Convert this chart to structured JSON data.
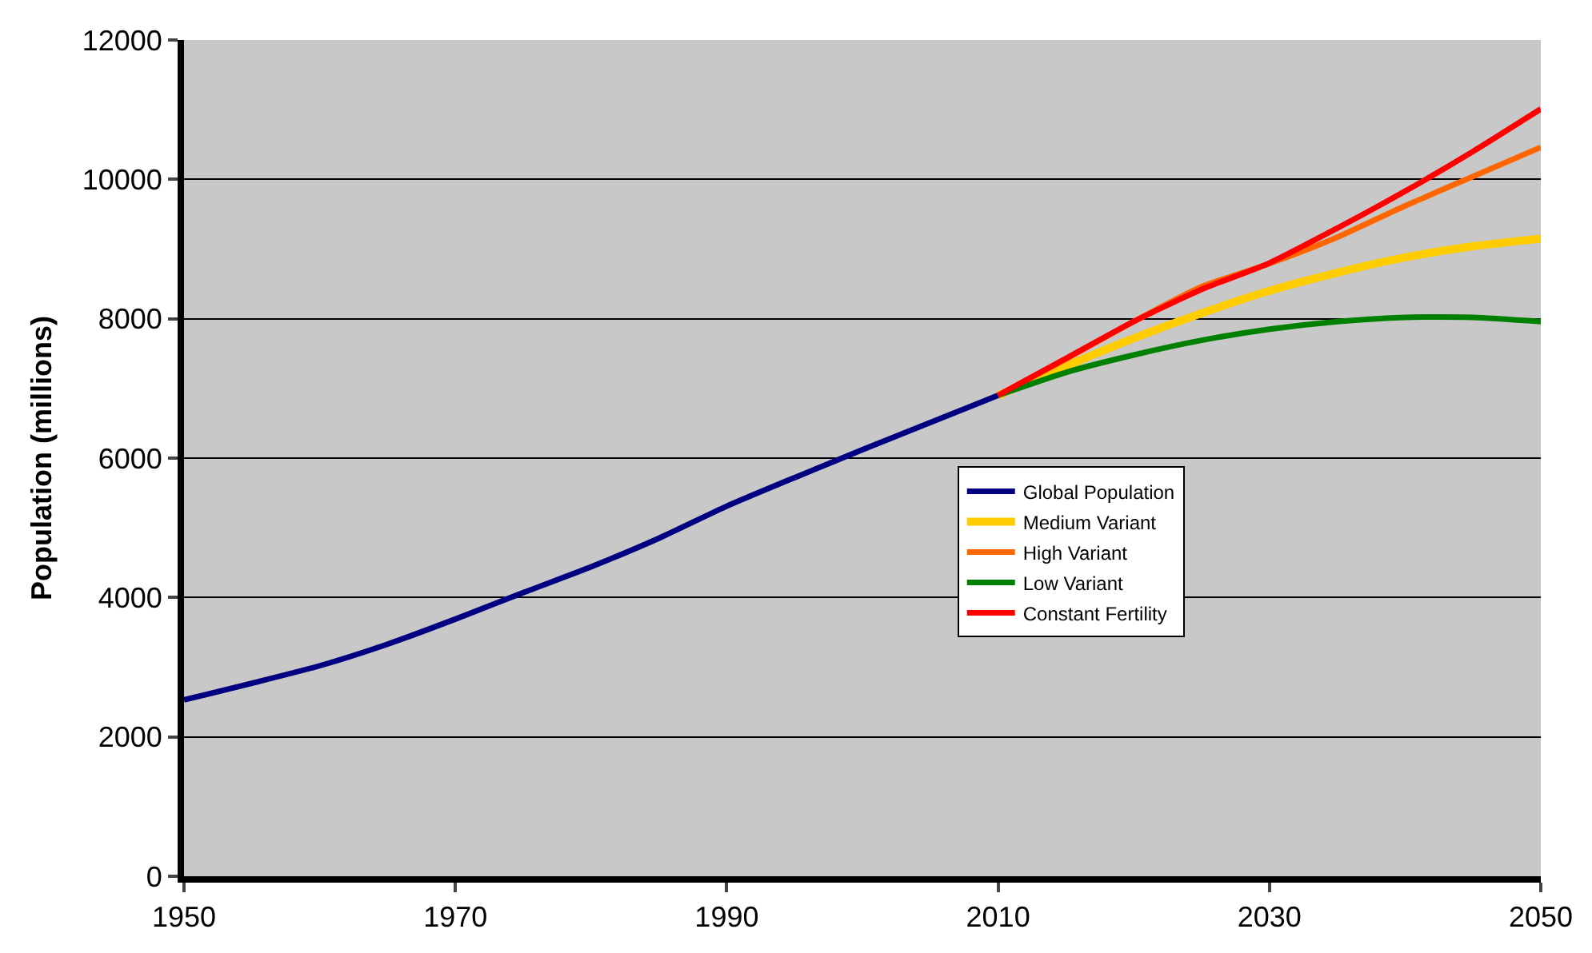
{
  "chart_data": {
    "type": "line",
    "ylabel": "Population (millions)",
    "xlim": [
      1950,
      2050
    ],
    "xticks": [
      1950,
      1970,
      1990,
      2010,
      2030,
      2050
    ],
    "ylim": [
      0,
      12000
    ],
    "yticks": [
      0,
      2000,
      4000,
      6000,
      8000,
      10000,
      12000
    ],
    "grid": "y",
    "legend": "center right",
    "marker": "none",
    "line_style": "solid",
    "series": [
      {
        "name": "Global Population",
        "color": "#000080",
        "x": [
          1950,
          1955,
          1960,
          1965,
          1970,
          1975,
          1980,
          1985,
          1990,
          1995,
          2000,
          2005,
          2010
        ],
        "values": [
          2530,
          2770,
          3020,
          3330,
          3690,
          4070,
          4440,
          4850,
          5310,
          5720,
          6120,
          6510,
          6900
        ]
      },
      {
        "name": "Medium Variant",
        "color": "#ffcc00",
        "x": [
          2010,
          2015,
          2020,
          2025,
          2030,
          2035,
          2040,
          2045,
          2050
        ],
        "values": [
          6900,
          7320,
          7720,
          8080,
          8400,
          8660,
          8880,
          9040,
          9150
        ]
      },
      {
        "name": "High Variant",
        "color": "#ff6600",
        "x": [
          2010,
          2015,
          2020,
          2025,
          2030,
          2035,
          2040,
          2045,
          2050
        ],
        "values": [
          6900,
          7420,
          7960,
          8460,
          8790,
          9170,
          9620,
          10040,
          10460
        ]
      },
      {
        "name": "Low Variant",
        "color": "#008000",
        "x": [
          2010,
          2015,
          2020,
          2025,
          2030,
          2035,
          2040,
          2045,
          2050
        ],
        "values": [
          6900,
          7230,
          7480,
          7690,
          7850,
          7960,
          8020,
          8020,
          7960
        ]
      },
      {
        "name": "Constant Fertility",
        "color": "#ff0000",
        "x": [
          2010,
          2015,
          2020,
          2025,
          2030,
          2035,
          2040,
          2045,
          2050
        ],
        "values": [
          6900,
          7430,
          7960,
          8420,
          8800,
          9300,
          9830,
          10400,
          11010
        ]
      }
    ]
  }
}
